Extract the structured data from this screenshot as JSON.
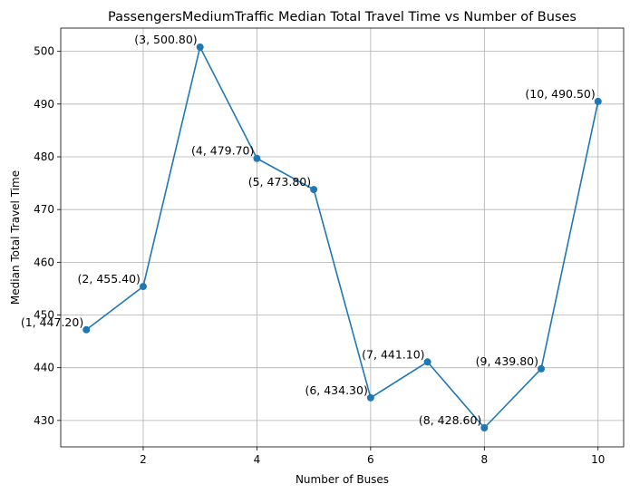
{
  "chart_data": {
    "type": "line",
    "title": "PassengersMediumTraffic Median Total Travel Time vs Number of Buses",
    "xlabel": "Number of Buses",
    "ylabel": "Median Total Travel Time",
    "xlim": [
      0.55,
      10.45
    ],
    "ylim": [
      424.99,
      504.41
    ],
    "xticks": [
      2,
      4,
      6,
      8,
      10
    ],
    "yticks": [
      430,
      440,
      450,
      460,
      470,
      480,
      490,
      500
    ],
    "grid": true,
    "line_color": "#1f77b4",
    "marker": "circle",
    "x": [
      1,
      2,
      3,
      4,
      5,
      6,
      7,
      8,
      9,
      10
    ],
    "y": [
      447.2,
      455.4,
      500.8,
      479.7,
      473.8,
      434.3,
      441.1,
      428.6,
      439.8,
      490.5
    ],
    "point_labels": [
      "(1, 447.20)",
      "(2, 455.40)",
      "(3, 500.80)",
      "(4, 479.70)",
      "(5, 473.80)",
      "(6, 434.30)",
      "(7, 441.10)",
      "(8, 428.60)",
      "(9, 439.80)",
      "(10, 490.50)"
    ]
  }
}
